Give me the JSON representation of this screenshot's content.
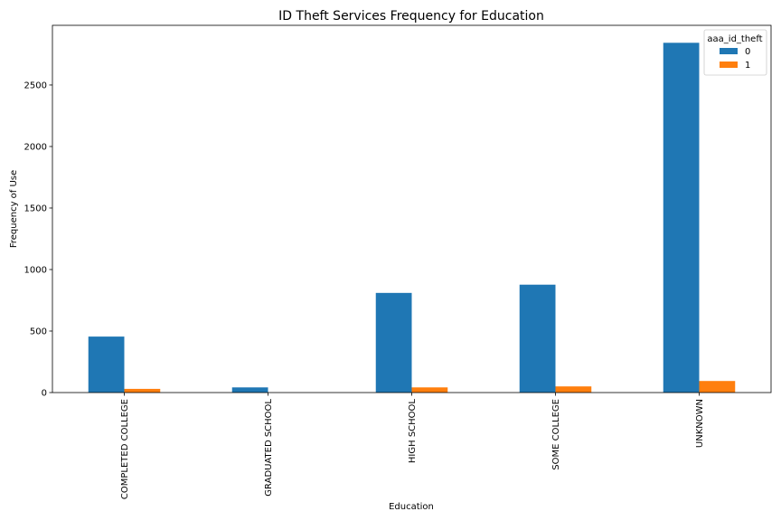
{
  "chart_data": {
    "type": "bar",
    "title": "ID Theft Services Frequency for Education",
    "xlabel": "Education",
    "ylabel": "Frequency of Use",
    "categories": [
      "COMPLETED COLLEGE",
      "GRADUATED SCHOOL",
      "HIGH SCHOOL",
      "SOME COLLEGE",
      "UNKNOWN"
    ],
    "series": [
      {
        "name": "0",
        "color": "#1f77b4",
        "values": [
          455,
          42,
          810,
          877,
          2843
        ]
      },
      {
        "name": "1",
        "color": "#ff7f0e",
        "values": [
          30,
          0,
          42,
          50,
          94
        ]
      }
    ],
    "ylim": [
      0,
      2985
    ],
    "yticks": [
      0,
      500,
      1000,
      1500,
      2000,
      2500
    ],
    "legend": {
      "title": "aaa_id_theft",
      "placement": "top-right"
    },
    "grid": false
  }
}
